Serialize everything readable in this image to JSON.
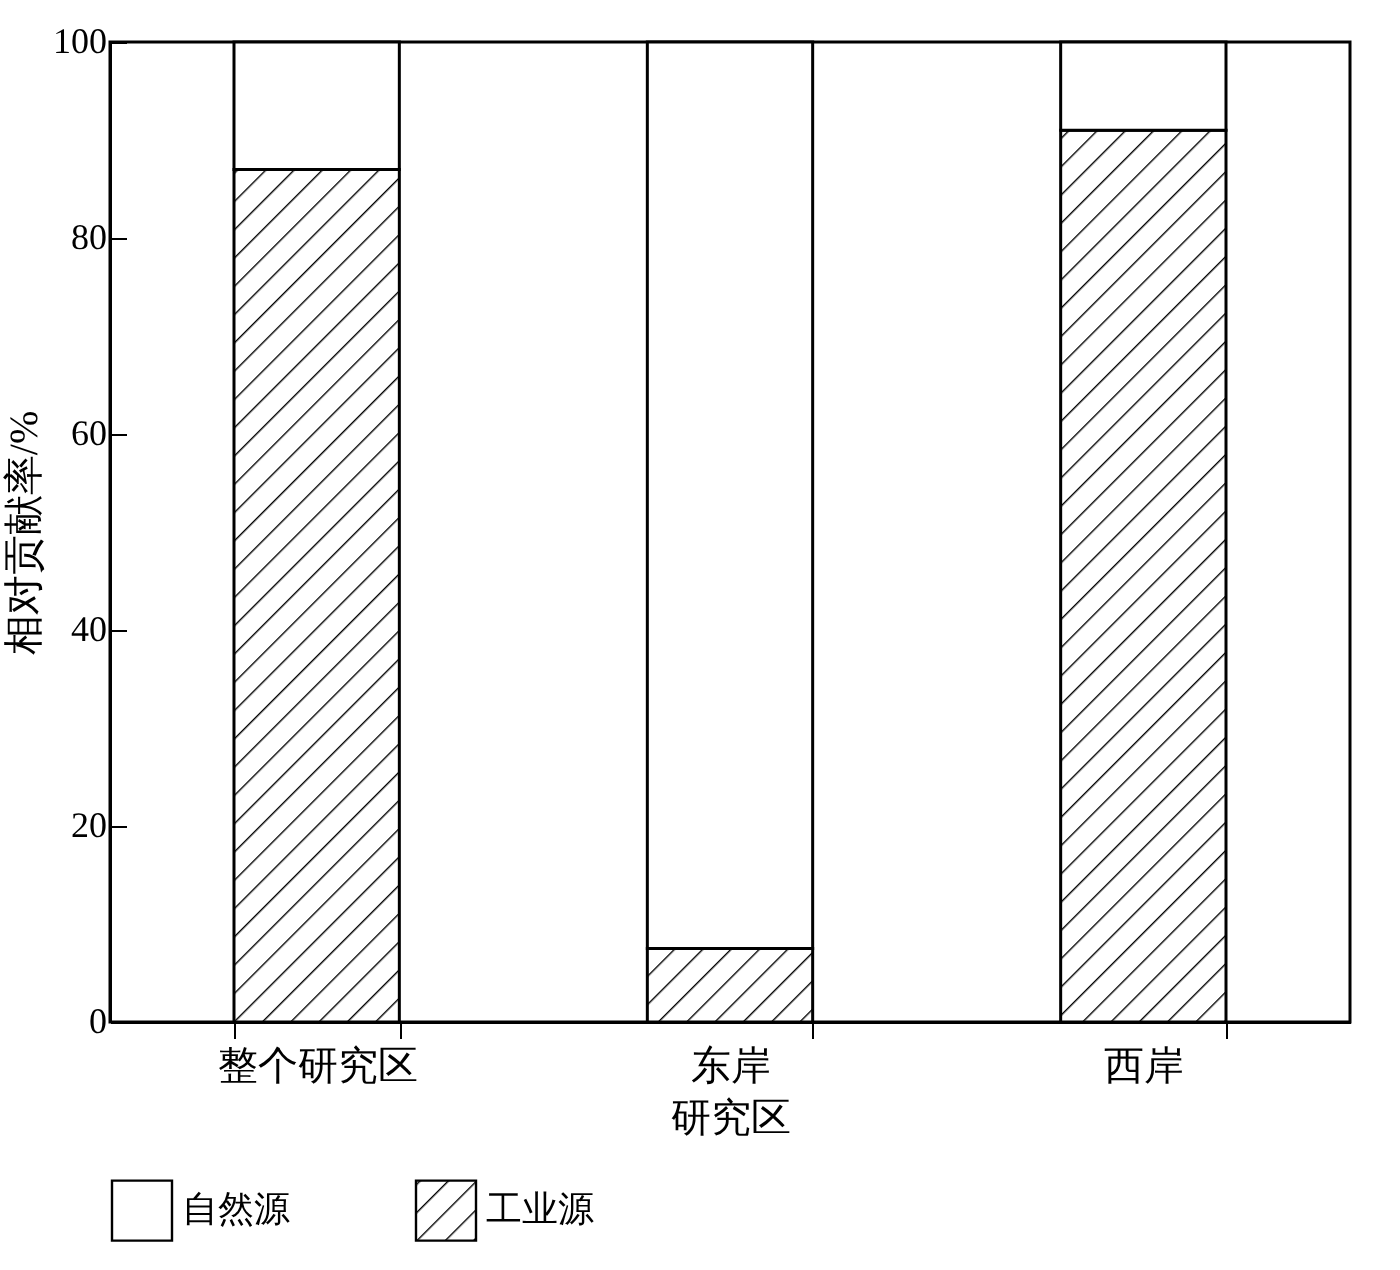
{
  "chart_data": {
    "type": "bar",
    "stacked": true,
    "xlabel": "研究区",
    "ylabel": "相对贡献率/%",
    "categories": [
      "整个研究区",
      "东岸",
      "西岸"
    ],
    "series": [
      {
        "name": "工业源",
        "color": "#000000",
        "values": [
          87,
          7.5,
          91
        ]
      },
      {
        "name": "自然源",
        "color": "#ffffff",
        "values": [
          13,
          92.5,
          9
        ]
      }
    ],
    "ylim": [
      0,
      100
    ],
    "yticks": [
      0,
      20,
      40,
      60,
      80,
      100
    ],
    "grid": false,
    "legend": "bottom"
  }
}
